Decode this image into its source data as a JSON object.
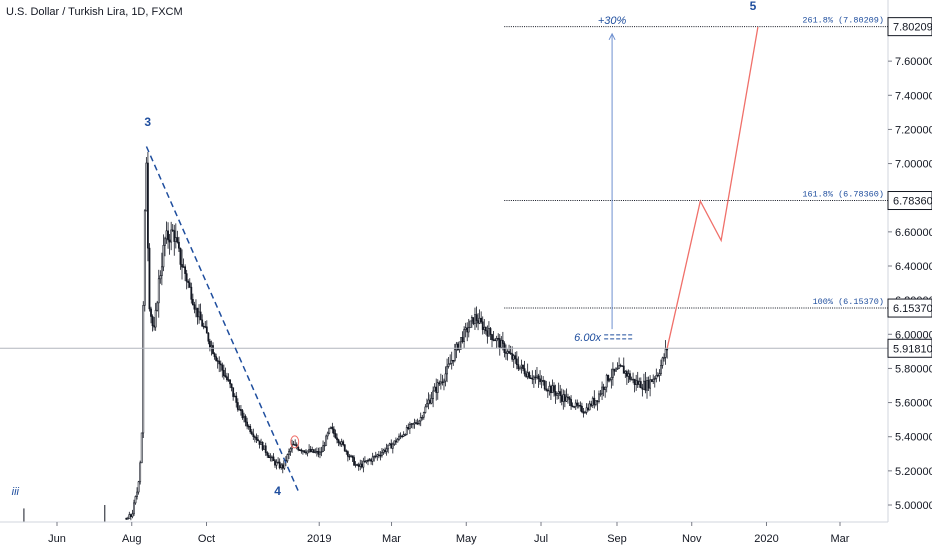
{
  "header": {
    "title": "U.S. Dollar / Turkish Lira, 1D, FXCM"
  },
  "colors": {
    "candle": "#131722",
    "trendline": "#1f4e9e",
    "projection": "#f0706a",
    "wave_label": "#1f4e9e",
    "fib_line": "#131722",
    "arrow": "#6d8fcf",
    "current_line": "#b2b5be"
  },
  "chart_data": {
    "type": "candlestick",
    "x_ticks": [
      "Jun",
      "Aug",
      "Oct",
      "2019",
      "Mar",
      "May",
      "Jul",
      "Sep",
      "Nov",
      "2020",
      "Mar"
    ],
    "y_ticks": [
      "5.00000",
      "5.20000",
      "5.40000",
      "5.60000",
      "5.80000",
      "6.00000",
      "6.20000",
      "6.40000",
      "6.60000",
      "6.80000",
      "7.00000",
      "7.20000",
      "7.40000",
      "7.60000",
      "7.80000"
    ],
    "ylim": [
      4.93,
      7.88
    ],
    "close_path": [
      {
        "t": "2018-05-05",
        "v": 4.38
      },
      {
        "t": "2018-06-01",
        "v": 4.55
      },
      {
        "t": "2018-07-01",
        "v": 4.75
      },
      {
        "t": "2018-08-01",
        "v": 4.94
      },
      {
        "t": "2018-08-06",
        "v": 5.1
      },
      {
        "t": "2018-08-09",
        "v": 5.35
      },
      {
        "t": "2018-08-11",
        "v": 6.5
      },
      {
        "t": "2018-08-13",
        "v": 7.05
      },
      {
        "t": "2018-08-15",
        "v": 6.2
      },
      {
        "t": "2018-08-19",
        "v": 6.0
      },
      {
        "t": "2018-08-23",
        "v": 6.3
      },
      {
        "t": "2018-08-28",
        "v": 6.55
      },
      {
        "t": "2018-09-04",
        "v": 6.6
      },
      {
        "t": "2018-09-09",
        "v": 6.45
      },
      {
        "t": "2018-09-14",
        "v": 6.35
      },
      {
        "t": "2018-09-22",
        "v": 6.15
      },
      {
        "t": "2018-10-01",
        "v": 6.0
      },
      {
        "t": "2018-10-10",
        "v": 5.85
      },
      {
        "t": "2018-10-20",
        "v": 5.7
      },
      {
        "t": "2018-10-28",
        "v": 5.55
      },
      {
        "t": "2018-11-05",
        "v": 5.45
      },
      {
        "t": "2018-11-15",
        "v": 5.35
      },
      {
        "t": "2018-11-25",
        "v": 5.25
      },
      {
        "t": "2018-12-02",
        "v": 5.22
      },
      {
        "t": "2018-12-10",
        "v": 5.35
      },
      {
        "t": "2018-12-20",
        "v": 5.32
      },
      {
        "t": "2019-01-02",
        "v": 5.3
      },
      {
        "t": "2019-01-10",
        "v": 5.45
      },
      {
        "t": "2019-01-20",
        "v": 5.35
      },
      {
        "t": "2019-02-01",
        "v": 5.22
      },
      {
        "t": "2019-02-15",
        "v": 5.28
      },
      {
        "t": "2019-03-01",
        "v": 5.35
      },
      {
        "t": "2019-03-15",
        "v": 5.45
      },
      {
        "t": "2019-03-24",
        "v": 5.5
      },
      {
        "t": "2019-04-01",
        "v": 5.62
      },
      {
        "t": "2019-04-15",
        "v": 5.78
      },
      {
        "t": "2019-04-25",
        "v": 5.95
      },
      {
        "t": "2019-05-08",
        "v": 6.1
      },
      {
        "t": "2019-05-18",
        "v": 6.02
      },
      {
        "t": "2019-05-28",
        "v": 5.95
      },
      {
        "t": "2019-06-05",
        "v": 5.88
      },
      {
        "t": "2019-06-15",
        "v": 5.8
      },
      {
        "t": "2019-06-25",
        "v": 5.75
      },
      {
        "t": "2019-07-05",
        "v": 5.7
      },
      {
        "t": "2019-07-15",
        "v": 5.65
      },
      {
        "t": "2019-07-25",
        "v": 5.6
      },
      {
        "t": "2019-08-05",
        "v": 5.55
      },
      {
        "t": "2019-08-15",
        "v": 5.62
      },
      {
        "t": "2019-08-25",
        "v": 5.75
      },
      {
        "t": "2019-09-05",
        "v": 5.8
      },
      {
        "t": "2019-09-15",
        "v": 5.72
      },
      {
        "t": "2019-09-25",
        "v": 5.7
      },
      {
        "t": "2019-10-05",
        "v": 5.78
      },
      {
        "t": "2019-10-12",
        "v": 5.92
      }
    ],
    "spike_candles": [
      {
        "t": "2018-05-05",
        "v": 4.98
      },
      {
        "t": "2018-07-10",
        "v": 5.0
      }
    ],
    "trendline": [
      {
        "t": "2018-08-13",
        "v": 7.1
      },
      {
        "t": "2018-12-15",
        "v": 5.08
      }
    ],
    "projection": [
      {
        "t": "2019-10-12",
        "v": 5.92
      },
      {
        "t": "2019-11-08",
        "v": 6.78
      },
      {
        "t": "2019-11-25",
        "v": 6.55
      },
      {
        "t": "2019-12-25",
        "v": 7.8
      }
    ],
    "fib_levels": [
      {
        "label": "261.8% (7.80209)",
        "price_label": "7.80209",
        "value": 7.80209
      },
      {
        "label": "161.8% (6.78360)",
        "price_label": "6.78360",
        "value": 6.7836
      },
      {
        "label": "100% (6.15370)",
        "price_label": "6.15370",
        "value": 6.1537
      }
    ],
    "fib_start": "2019-06-01",
    "current_price": {
      "label": "5.91810",
      "value": 5.9181
    },
    "wave_labels": [
      {
        "text": "3",
        "t": "2018-08-14",
        "v": 7.22
      },
      {
        "text": "4",
        "t": "2018-11-28",
        "v": 5.06
      },
      {
        "text": "5",
        "t": "2019-12-21",
        "v": 7.9
      },
      {
        "text": "iii",
        "t": "2018-04-28",
        "v": 5.06
      }
    ],
    "arrow": {
      "t": "2019-08-28",
      "from": 6.03,
      "to": 7.76,
      "label": "+30%"
    },
    "volume_note": {
      "text": "6.00x",
      "t": "2019-08-15",
      "v": 5.985,
      "end_t": "2019-09-14"
    },
    "marker": {
      "t": "2018-12-12",
      "v": 5.37
    }
  }
}
